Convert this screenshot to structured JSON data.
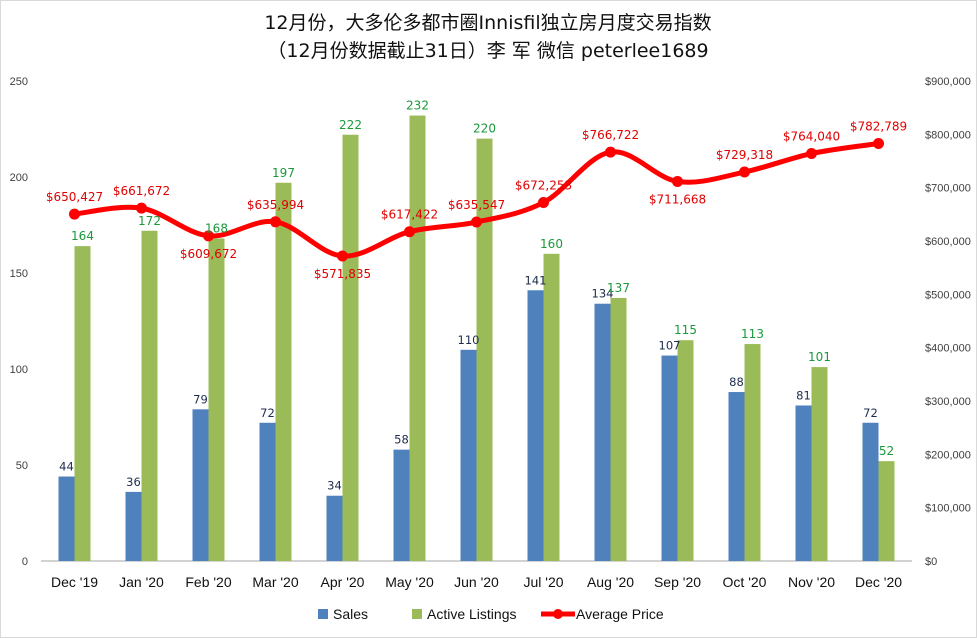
{
  "chart_data": {
    "type": "bar",
    "title": "12月份，大多伦多都市圈Innisfil独立房月度交易指数",
    "subtitle": "（12月份数据截止31日）李 军  微信  peterlee1689",
    "categories": [
      "Dec '19",
      "Jan '20",
      "Feb '20",
      "Mar '20",
      "Apr '20",
      "May '20",
      "Jun '20",
      "Jul '20",
      "Aug '20",
      "Sep '20",
      "Oct '20",
      "Nov '20",
      "Dec '20"
    ],
    "series": [
      {
        "name": "Sales",
        "type": "bar",
        "axis": "left",
        "color": "#4f81bd",
        "values": [
          44,
          36,
          79,
          72,
          34,
          58,
          110,
          141,
          134,
          107,
          88,
          81,
          72
        ],
        "labels": [
          "44",
          "36",
          "79",
          "72",
          "34",
          "58",
          "110",
          "141",
          "134",
          "107",
          "88",
          "81",
          "72"
        ]
      },
      {
        "name": "Active Listings",
        "type": "bar",
        "axis": "left",
        "color": "#9bbb59",
        "values": [
          164,
          172,
          168,
          197,
          222,
          232,
          220,
          160,
          137,
          115,
          113,
          101,
          52
        ],
        "labels": [
          "164",
          "172",
          "168",
          "197",
          "222",
          "232",
          "220",
          "160",
          "137",
          "115",
          "113",
          "101",
          "52"
        ]
      },
      {
        "name": "Average Price",
        "type": "line",
        "axis": "right",
        "color": "#ff0000",
        "values": [
          650427,
          661672,
          609672,
          635994,
          571835,
          617422,
          635547,
          672253,
          766722,
          711668,
          729318,
          764040,
          782789
        ],
        "labels": [
          "$650,427",
          "$661,672",
          "$609,672",
          "$635,994",
          "$571,835",
          "$617,422",
          "$635,547",
          "$672,253",
          "$766,722",
          "$711,668",
          "$729,318",
          "$764,040",
          "$782,789"
        ]
      }
    ],
    "y_left": {
      "min": 0,
      "max": 250,
      "ticks": [
        "0",
        "50",
        "100",
        "150",
        "200",
        "250"
      ]
    },
    "y_right": {
      "min": 0,
      "max": 900000,
      "ticks": [
        "$0",
        "$100,000",
        "$200,000",
        "$300,000",
        "$400,000",
        "$500,000",
        "$600,000",
        "$700,000",
        "$800,000",
        "$900,000"
      ]
    },
    "grid": false,
    "legend": "bottom"
  }
}
